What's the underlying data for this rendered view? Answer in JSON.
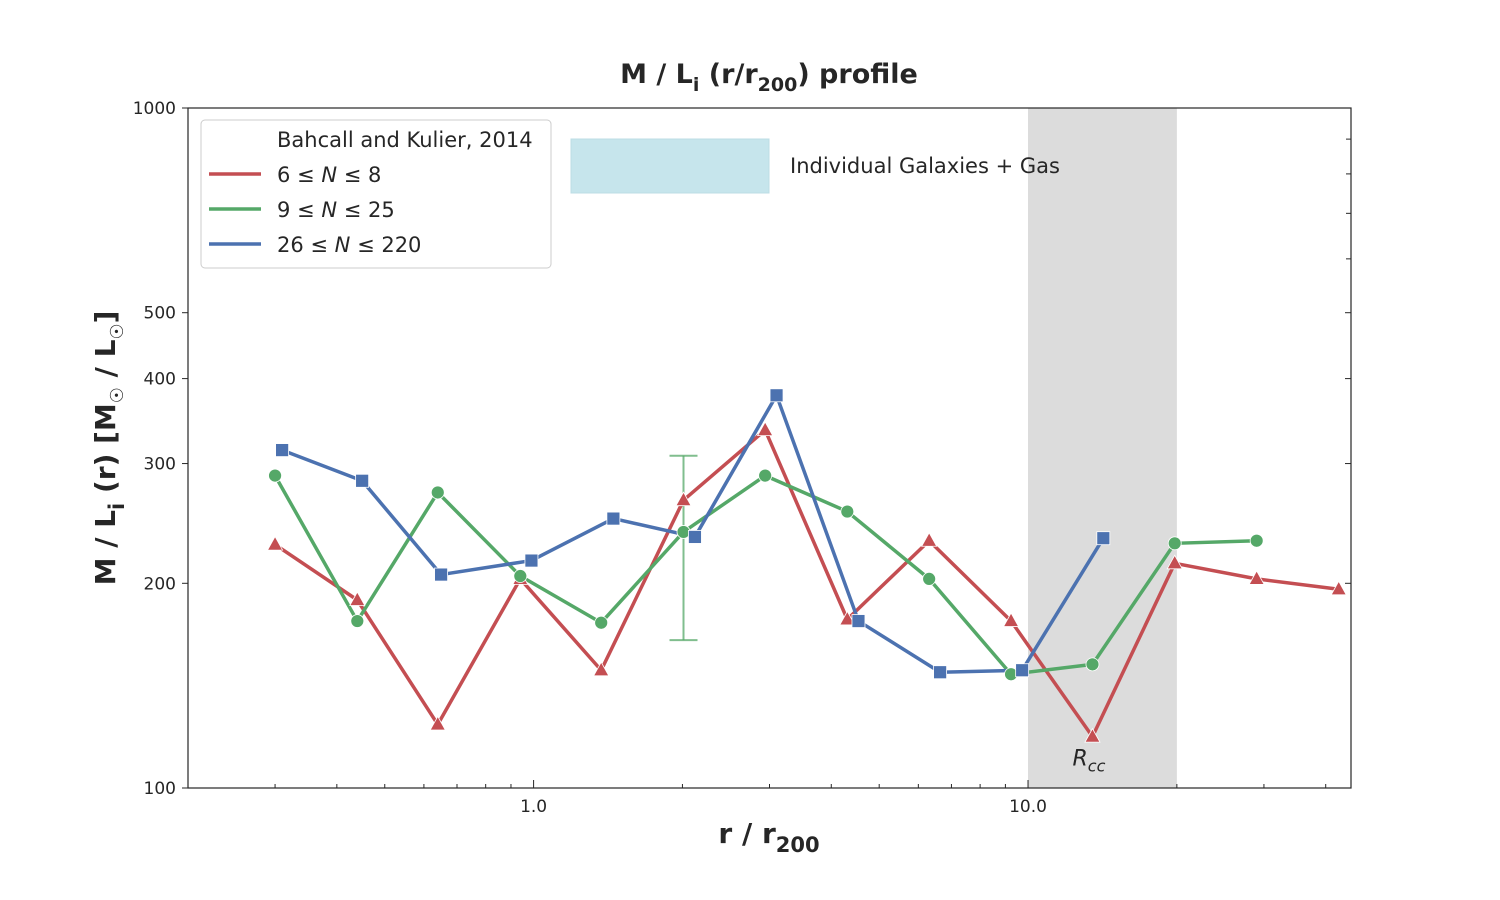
{
  "chart_data": {
    "type": "line",
    "title": "M / L",
    "title_sub": "i",
    "title_rest": " (r/r",
    "title_sub2": "200",
    "title_end": ") profile",
    "xlabel": "r / r",
    "xlabel_sub": "200",
    "ylabel": "M / L",
    "ylabel_sub": "i",
    "ylabel_rest": " (r)  [M",
    "ylabel_sun": "☉",
    "ylabel_mid": " / L",
    "ylabel_end": "]",
    "xscale": "log",
    "yscale": "log",
    "xlim": [
      0.2,
      45
    ],
    "ylim": [
      100,
      1000
    ],
    "x_ticks": [
      {
        "value": 1.0,
        "label": "1.0"
      },
      {
        "value": 10.0,
        "label": "10.0"
      }
    ],
    "y_ticks": [
      {
        "value": 100,
        "label": "100"
      },
      {
        "value": 200,
        "label": "200"
      },
      {
        "value": 300,
        "label": "300"
      },
      {
        "value": 400,
        "label": "400"
      },
      {
        "value": 500,
        "label": "500"
      },
      {
        "value": 1000,
        "label": "1000"
      }
    ],
    "legend": {
      "placement": "top-left",
      "title": "Bahcall and Kulier, 2014",
      "entries": [
        {
          "pre": "6 ≤ ",
          "n": "N",
          "post": " ≤ 8"
        },
        {
          "pre": "9 ≤ ",
          "n": "N",
          "post": " ≤ 25"
        },
        {
          "pre": "26 ≤ ",
          "n": "N",
          "post": " ≤ 220"
        }
      ]
    },
    "series": [
      {
        "color": "#c44e52",
        "marker": "triangle",
        "x": [
          0.3,
          0.44,
          0.64,
          0.94,
          1.37,
          2.01,
          2.94,
          4.31,
          6.31,
          9.24,
          13.5,
          19.8,
          29.0,
          42.5
        ],
        "y": [
          228,
          189,
          124,
          203,
          149,
          265,
          336,
          177,
          231,
          176,
          119,
          214,
          203,
          196
        ]
      },
      {
        "color": "#55a868",
        "marker": "circle",
        "x": [
          0.3,
          0.44,
          0.64,
          0.94,
          1.37,
          2.01,
          2.94,
          4.31,
          6.31,
          9.24,
          13.5,
          19.8,
          29.0
        ],
        "y": [
          288,
          176,
          272,
          205,
          175,
          238,
          288,
          255,
          203,
          147,
          152,
          229,
          231
        ]
      },
      {
        "color": "#4c72b0",
        "marker": "square",
        "x": [
          0.31,
          0.45,
          0.65,
          0.99,
          1.45,
          2.12,
          3.1,
          4.54,
          6.64,
          9.73,
          14.2
        ],
        "y": [
          314,
          283,
          206,
          216,
          249,
          234,
          378,
          176,
          148,
          149,
          233
        ]
      }
    ],
    "error_bar": {
      "x": 2.01,
      "y_low": 165,
      "y_high": 308,
      "color": "#55a868"
    },
    "shaded_band": {
      "x_from": 10.0,
      "x_to": 20.0,
      "color": "#dcdcdc",
      "label": "R",
      "label_sub": "cc"
    },
    "annotation": {
      "text": "Individual Galaxies + Gas",
      "swatch_color": "#c6e5ec"
    }
  }
}
